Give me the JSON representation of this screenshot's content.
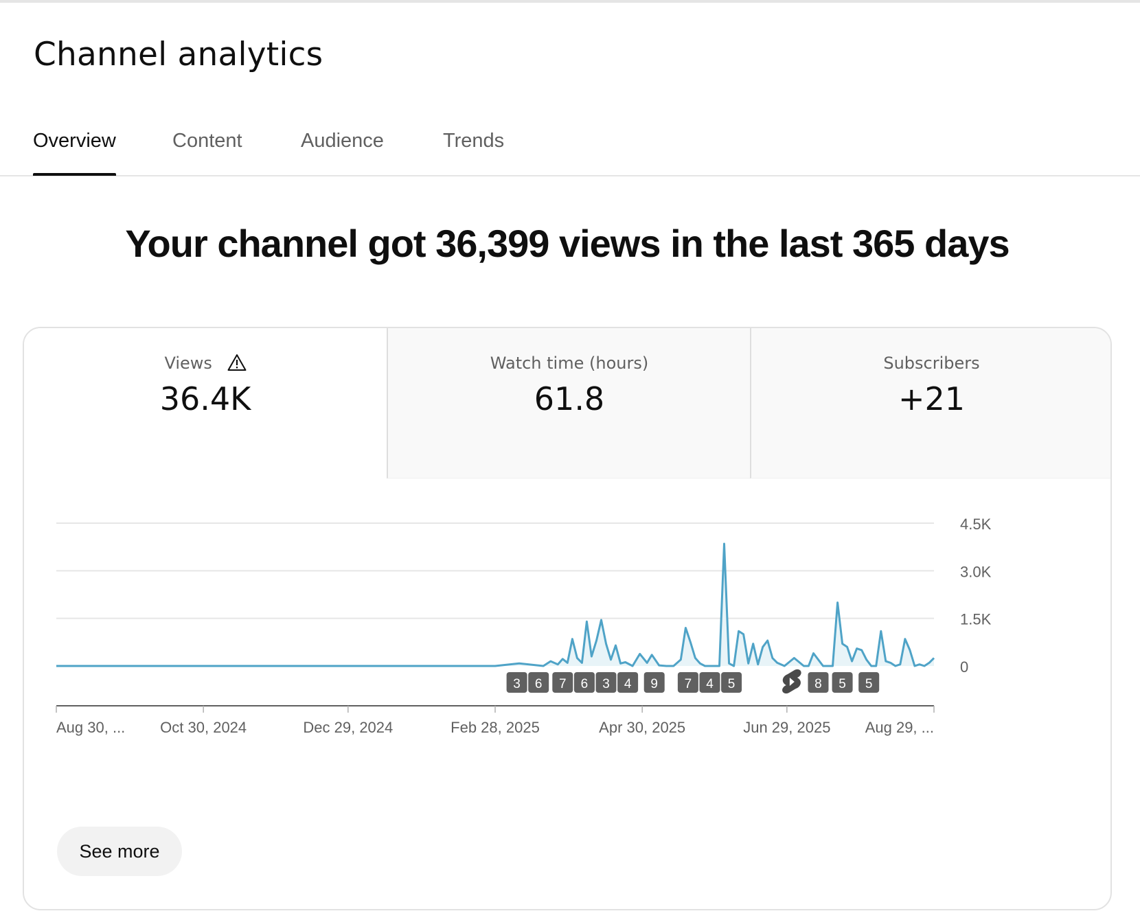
{
  "page": {
    "title": "Channel analytics"
  },
  "tabs": [
    {
      "label": "Overview",
      "active": true
    },
    {
      "label": "Content",
      "active": false
    },
    {
      "label": "Audience",
      "active": false
    },
    {
      "label": "Trends",
      "active": false
    }
  ],
  "headline": "Your channel got 36,399 views in the last 365 days",
  "metrics": [
    {
      "label": "Views",
      "value": "36.4K",
      "icon": "warning-icon",
      "selected": true
    },
    {
      "label": "Watch time (hours)",
      "value": "61.8",
      "selected": false
    },
    {
      "label": "Subscribers",
      "value": "+21",
      "selected": false
    }
  ],
  "colors": {
    "line": "#4fa3c7",
    "fill": "#e8f4f8",
    "marker_bg": "#606060",
    "grid": "#e6e6e6",
    "axis": "#606060"
  },
  "chart_data": {
    "type": "line",
    "x": [
      "2024-08-30",
      "2024-10-30",
      "2024-12-29",
      "2025-02-28",
      "2025-03-10",
      "2025-03-20",
      "2025-03-23",
      "2025-03-26",
      "2025-03-28",
      "2025-03-30",
      "2025-04-01",
      "2025-04-03",
      "2025-04-05",
      "2025-04-07",
      "2025-04-09",
      "2025-04-11",
      "2025-04-13",
      "2025-04-15",
      "2025-04-17",
      "2025-04-19",
      "2025-04-21",
      "2025-04-23",
      "2025-04-26",
      "2025-04-29",
      "2025-05-02",
      "2025-05-04",
      "2025-05-07",
      "2025-05-10",
      "2025-05-13",
      "2025-05-16",
      "2025-05-18",
      "2025-05-20",
      "2025-05-22",
      "2025-05-24",
      "2025-05-26",
      "2025-05-29",
      "2025-06-01",
      "2025-06-03",
      "2025-06-05",
      "2025-06-07",
      "2025-06-09",
      "2025-06-11",
      "2025-06-13",
      "2025-06-15",
      "2025-06-17",
      "2025-06-19",
      "2025-06-21",
      "2025-06-23",
      "2025-06-25",
      "2025-06-28",
      "2025-07-02",
      "2025-07-06",
      "2025-07-08",
      "2025-07-10",
      "2025-07-14",
      "2025-07-18",
      "2025-07-20",
      "2025-07-22",
      "2025-07-24",
      "2025-07-26",
      "2025-07-28",
      "2025-07-30",
      "2025-08-01",
      "2025-08-03",
      "2025-08-05",
      "2025-08-07",
      "2025-08-09",
      "2025-08-11",
      "2025-08-13",
      "2025-08-15",
      "2025-08-17",
      "2025-08-19",
      "2025-08-21",
      "2025-08-23",
      "2025-08-25",
      "2025-08-27",
      "2025-08-29"
    ],
    "values": [
      0,
      0,
      0,
      0,
      80,
      0,
      150,
      50,
      220,
      100,
      850,
      250,
      100,
      1400,
      300,
      800,
      1450,
      700,
      200,
      650,
      80,
      120,
      0,
      380,
      100,
      350,
      20,
      0,
      0,
      200,
      1200,
      750,
      250,
      80,
      0,
      0,
      0,
      3850,
      80,
      0,
      1100,
      1000,
      80,
      700,
      50,
      600,
      800,
      250,
      100,
      0,
      250,
      0,
      0,
      400,
      0,
      0,
      2000,
      700,
      600,
      150,
      550,
      500,
      200,
      0,
      0,
      1100,
      150,
      100,
      0,
      50,
      850,
      500,
      0,
      50,
      0,
      100,
      250
    ],
    "xticks": [
      "Aug 30, ...",
      "Oct 30, 2024",
      "Dec 29, 2024",
      "Feb 28, 2025",
      "Apr 30, 2025",
      "Jun 29, 2025",
      "Aug 29, ..."
    ],
    "yticks": [
      "0",
      "1.5K",
      "3.0K",
      "4.5K"
    ],
    "ylim": [
      0,
      4500
    ],
    "grid": true,
    "markers": [
      {
        "label": "3",
        "date": "2025-03-09"
      },
      {
        "label": "6",
        "date": "2025-03-18"
      },
      {
        "label": "7",
        "date": "2025-03-28"
      },
      {
        "label": "6",
        "date": "2025-04-06"
      },
      {
        "label": "3",
        "date": "2025-04-15"
      },
      {
        "label": "4",
        "date": "2025-04-24"
      },
      {
        "label": "9",
        "date": "2025-05-05"
      },
      {
        "label": "7",
        "date": "2025-05-19"
      },
      {
        "label": "4",
        "date": "2025-05-28"
      },
      {
        "label": "5",
        "date": "2025-06-06"
      },
      {
        "label": "",
        "date": "2025-07-01",
        "icon": "shorts-icon"
      },
      {
        "label": "8",
        "date": "2025-07-12"
      },
      {
        "label": "5",
        "date": "2025-07-22"
      },
      {
        "label": "5",
        "date": "2025-08-02"
      }
    ]
  },
  "see_more_label": "See more"
}
